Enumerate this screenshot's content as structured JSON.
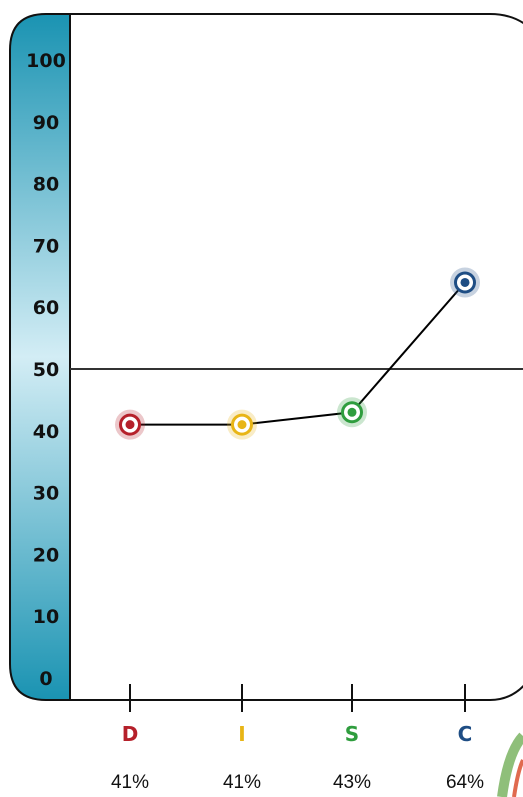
{
  "chart_data": {
    "type": "line",
    "categories": [
      "D",
      "I",
      "S",
      "C"
    ],
    "values": [
      41,
      41,
      43,
      64
    ],
    "value_labels": [
      "41%",
      "41%",
      "43%",
      "64%"
    ],
    "category_colors": [
      "#b5202a",
      "#e8b516",
      "#2f9d3e",
      "#1e4d84"
    ],
    "y_ticks": [
      "0",
      "10",
      "20",
      "30",
      "40",
      "50",
      "60",
      "70",
      "80",
      "90",
      "100"
    ],
    "ylim": [
      0,
      100
    ],
    "reference_line": 50,
    "line_color": "#000000",
    "axis_band_colors": [
      "#1a93b2",
      "#d3edf5"
    ],
    "grid": false,
    "legend": "none"
  }
}
